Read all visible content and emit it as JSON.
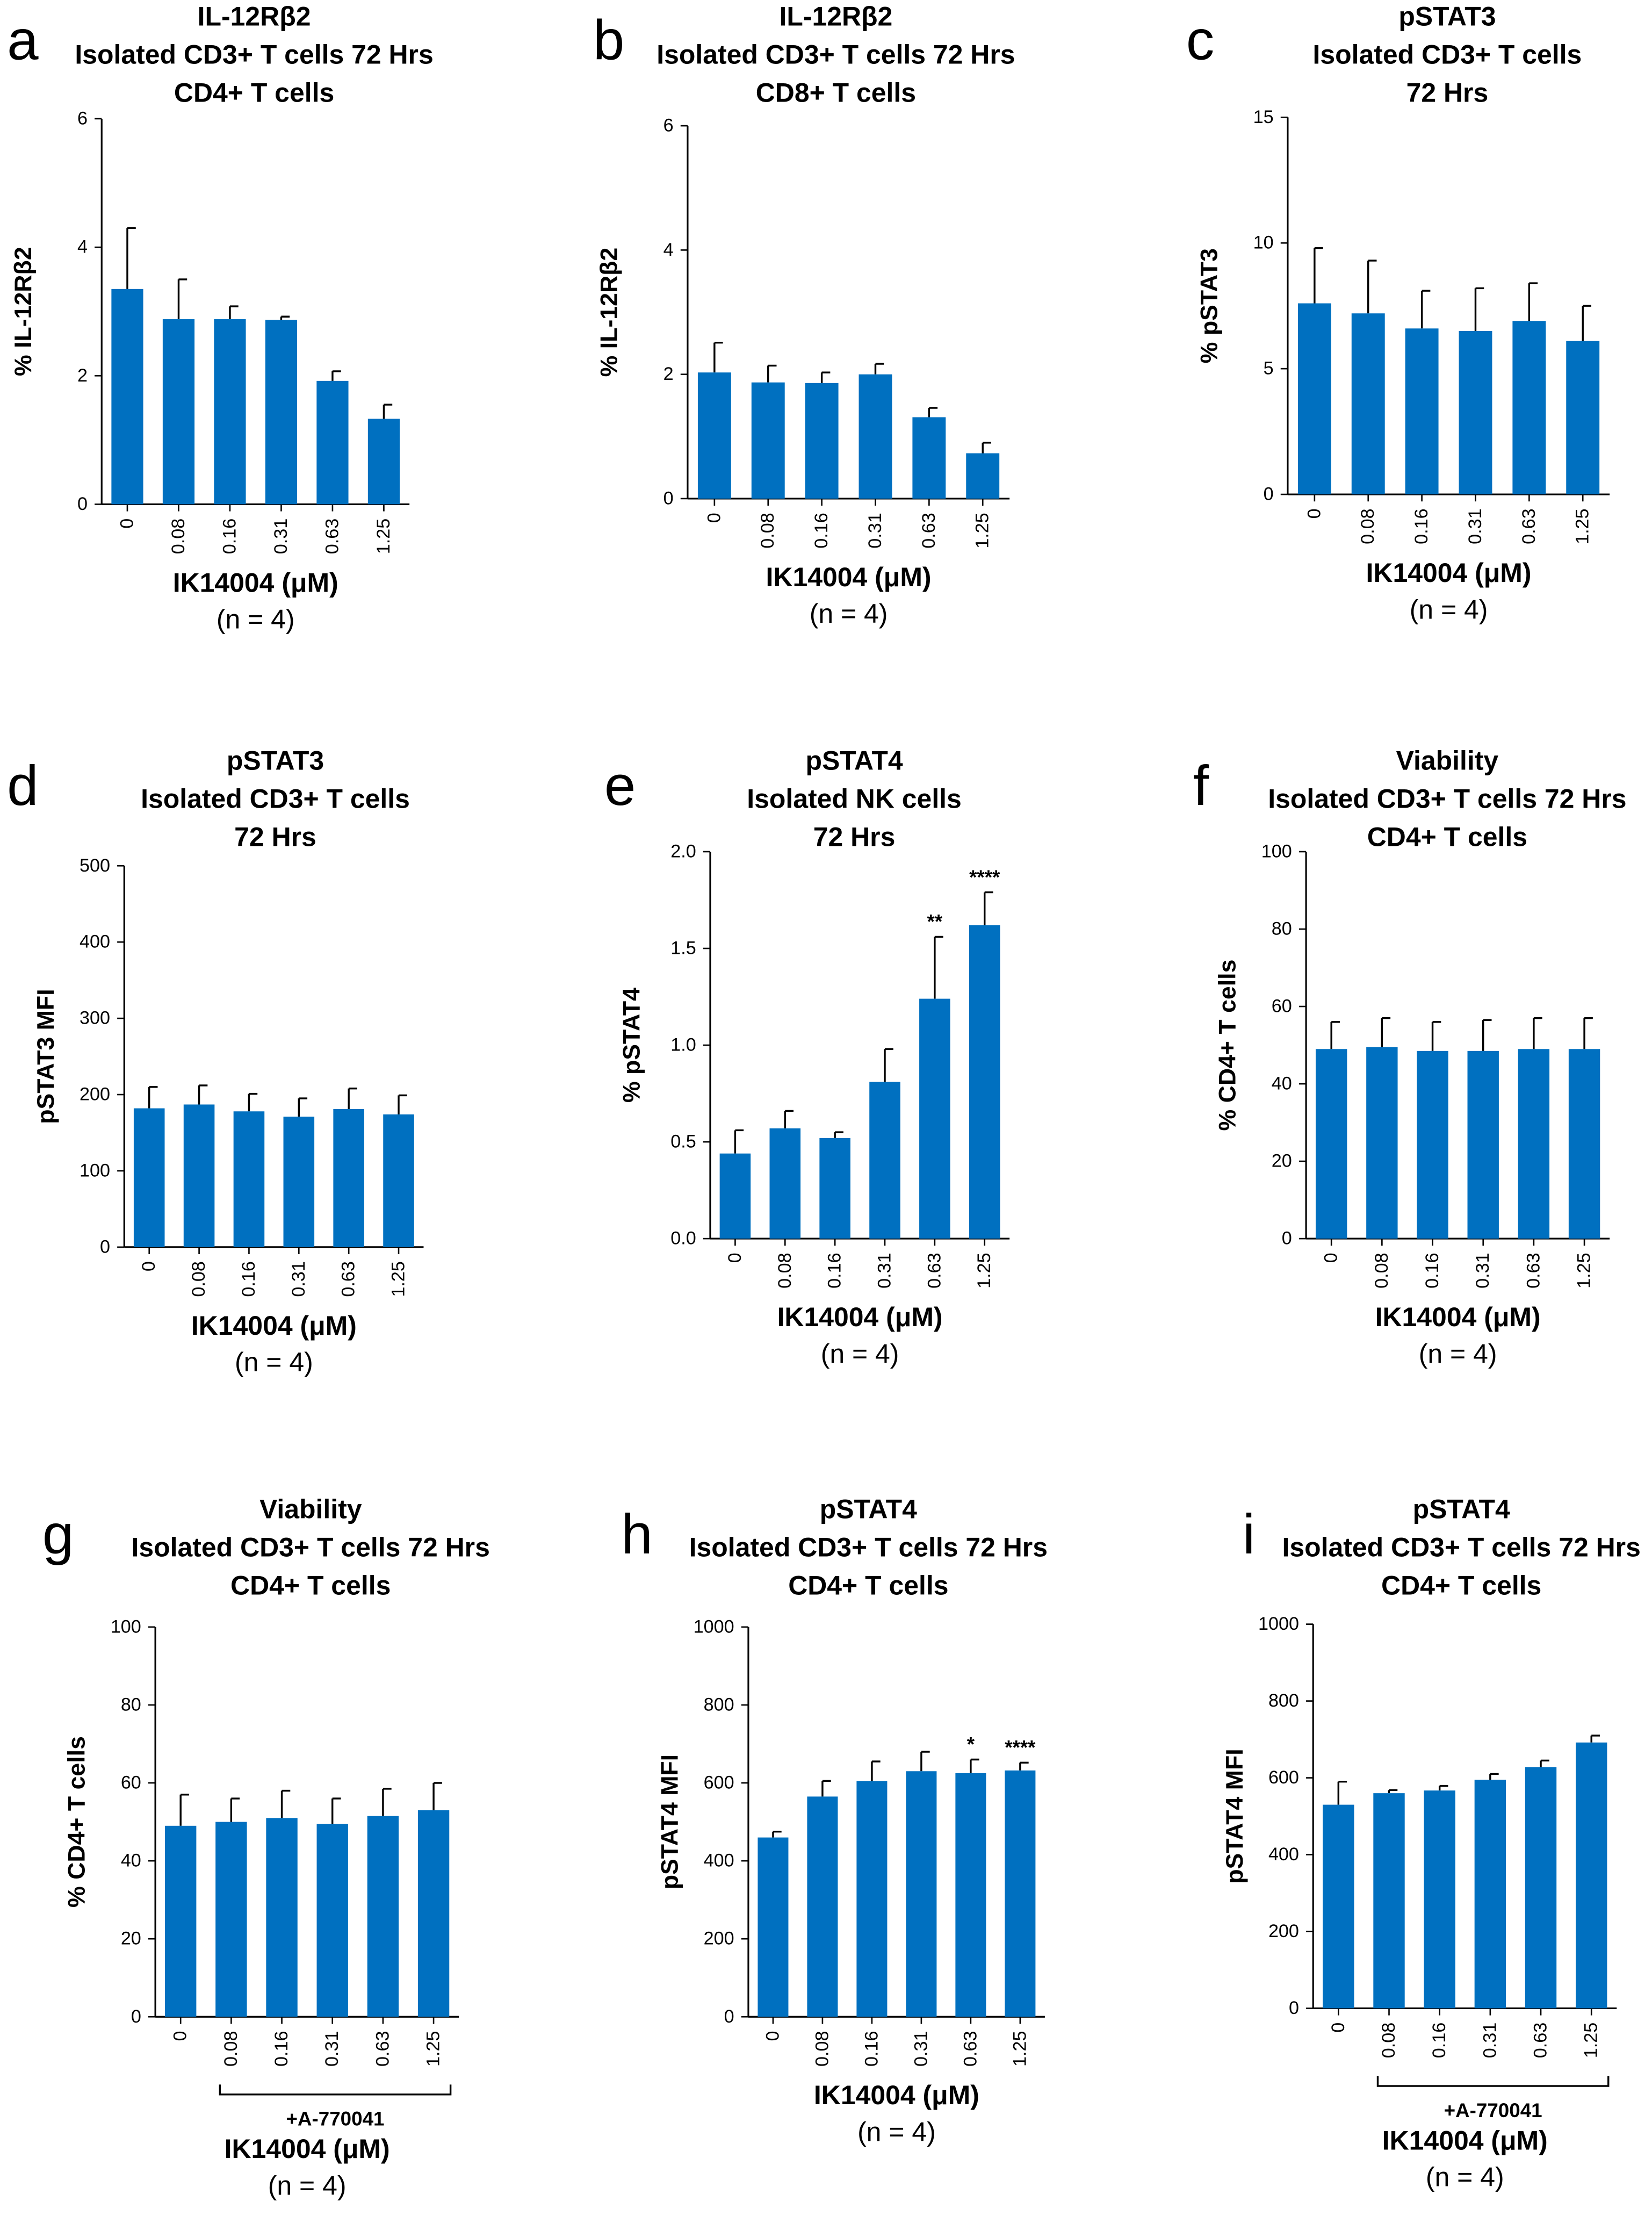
{
  "colors": {
    "bar": "#0070C0",
    "axis": "#000000"
  },
  "chart_data": [
    {
      "panel": "a",
      "type": "bar",
      "title": [
        "IL-12Rβ2",
        "Isolated CD3+ T cells 72 Hrs",
        "CD4+ T cells"
      ],
      "ylabel": "% IL-12Rβ2",
      "xlabel": "IK14004 (μM)",
      "note": "(n = 4)",
      "categories": [
        "0",
        "0.08",
        "0.16",
        "0.31",
        "0.63",
        "1.25"
      ],
      "values": [
        3.35,
        2.88,
        2.88,
        2.87,
        1.92,
        1.33
      ],
      "errors": [
        0.95,
        0.62,
        0.2,
        0.05,
        0.15,
        0.22
      ],
      "ylim": [
        0,
        6
      ],
      "yticks": [
        "0",
        "2",
        "4",
        "6"
      ],
      "annotations": [
        "",
        "",
        "",
        "",
        "",
        ""
      ]
    },
    {
      "panel": "b",
      "type": "bar",
      "title": [
        "IL-12Rβ2",
        "Isolated CD3+ T cells 72 Hrs",
        "CD8+ T cells"
      ],
      "ylabel": "% IL-12Rβ2",
      "xlabel": "IK14004 (μM)",
      "note": "(n = 4)",
      "categories": [
        "0",
        "0.08",
        "0.16",
        "0.31",
        "0.63",
        "1.25"
      ],
      "values": [
        2.03,
        1.87,
        1.86,
        2.0,
        1.31,
        0.73
      ],
      "errors": [
        0.48,
        0.27,
        0.17,
        0.17,
        0.15,
        0.17
      ],
      "ylim": [
        0,
        6
      ],
      "yticks": [
        "0",
        "2",
        "4",
        "6"
      ],
      "annotations": [
        "",
        "",
        "",
        "",
        "",
        ""
      ]
    },
    {
      "panel": "c",
      "type": "bar",
      "title": [
        "pSTAT3",
        "Isolated CD3+ T cells",
        "72 Hrs"
      ],
      "ylabel": "% pSTAT3",
      "xlabel": "IK14004 (μM)",
      "note": "(n = 4)",
      "categories": [
        "0",
        "0.08",
        "0.16",
        "0.31",
        "0.63",
        "1.25"
      ],
      "values": [
        7.6,
        7.2,
        6.6,
        6.5,
        6.9,
        6.1
      ],
      "errors": [
        2.2,
        2.1,
        1.5,
        1.7,
        1.5,
        1.4
      ],
      "ylim": [
        0,
        15
      ],
      "yticks": [
        "0",
        "5",
        "10",
        "15"
      ],
      "annotations": [
        "",
        "",
        "",
        "",
        "",
        ""
      ]
    },
    {
      "panel": "d",
      "type": "bar",
      "title": [
        "pSTAT3",
        "Isolated CD3+ T cells",
        "72 Hrs"
      ],
      "ylabel": "pSTAT3 MFI",
      "xlabel": "IK14004 (μM)",
      "note": "(n = 4)",
      "categories": [
        "0",
        "0.08",
        "0.16",
        "0.31",
        "0.63",
        "1.25"
      ],
      "values": [
        182,
        187,
        178,
        171,
        181,
        174
      ],
      "errors": [
        28,
        25,
        23,
        24,
        27,
        25
      ],
      "ylim": [
        0,
        500
      ],
      "yticks": [
        "0",
        "100",
        "200",
        "300",
        "400",
        "500"
      ],
      "annotations": [
        "",
        "",
        "",
        "",
        "",
        ""
      ]
    },
    {
      "panel": "e",
      "type": "bar",
      "title": [
        "pSTAT4",
        "Isolated NK cells",
        "72 Hrs"
      ],
      "ylabel": "% pSTAT4",
      "xlabel": "IK14004 (μM)",
      "note": "(n = 4)",
      "categories": [
        "0",
        "0.08",
        "0.16",
        "0.31",
        "0.63",
        "1.25"
      ],
      "values": [
        0.44,
        0.57,
        0.52,
        0.81,
        1.24,
        1.62
      ],
      "errors": [
        0.12,
        0.09,
        0.03,
        0.17,
        0.32,
        0.17
      ],
      "ylim": [
        0,
        2
      ],
      "yticks": [
        "0.0",
        "0.5",
        "1.0",
        "1.5",
        "2.0"
      ],
      "annotations": [
        "",
        "",
        "",
        "",
        "**",
        "****"
      ]
    },
    {
      "panel": "f",
      "type": "bar",
      "title": [
        "Viability",
        "Isolated CD3+ T cells 72 Hrs",
        "CD4+ T cells"
      ],
      "ylabel": "% CD4+ T cells",
      "xlabel": "IK14004 (μM)",
      "note": "(n = 4)",
      "categories": [
        "0",
        "0.08",
        "0.16",
        "0.31",
        "0.63",
        "1.25"
      ],
      "values": [
        49,
        49.5,
        48.5,
        48.5,
        49,
        49
      ],
      "errors": [
        7,
        7.5,
        7.5,
        8,
        8,
        8
      ],
      "ylim": [
        0,
        100
      ],
      "yticks": [
        "0",
        "20",
        "40",
        "60",
        "80",
        "100"
      ],
      "annotations": [
        "",
        "",
        "",
        "",
        "",
        ""
      ]
    },
    {
      "panel": "g",
      "type": "bar",
      "title": [
        "Viability",
        "Isolated CD3+ T cells 72 Hrs",
        "CD4+ T cells"
      ],
      "ylabel": "% CD4+ T cells",
      "xlabel": "IK14004 (μM)",
      "note": "(n = 4)",
      "bracket_label": "+A-770041",
      "categories": [
        "0",
        "0.08",
        "0.16",
        "0.31",
        "0.63",
        "1.25"
      ],
      "values": [
        49,
        50,
        51,
        49.5,
        51.5,
        53
      ],
      "errors": [
        8,
        6,
        7,
        6.5,
        7,
        7
      ],
      "ylim": [
        0,
        100
      ],
      "yticks": [
        "0",
        "20",
        "40",
        "60",
        "80",
        "100"
      ],
      "annotations": [
        "",
        "",
        "",
        "",
        "",
        ""
      ]
    },
    {
      "panel": "h",
      "type": "bar",
      "title": [
        "pSTAT4",
        "Isolated CD3+ T cells 72 Hrs",
        "CD4+ T cells"
      ],
      "ylabel": "pSTAT4 MFI",
      "xlabel": "IK14004 (μM)",
      "note": "(n = 4)",
      "categories": [
        "0",
        "0.08",
        "0.16",
        "0.31",
        "0.63",
        "1.25"
      ],
      "values": [
        460,
        565,
        605,
        630,
        625,
        632
      ],
      "errors": [
        15,
        40,
        50,
        50,
        35,
        20
      ],
      "ylim": [
        0,
        1000
      ],
      "yticks": [
        "0",
        "200",
        "400",
        "600",
        "800",
        "1000"
      ],
      "annotations": [
        "",
        "",
        "",
        "",
        "*",
        "****"
      ]
    },
    {
      "panel": "i",
      "type": "bar",
      "title": [
        "pSTAT4",
        "Isolated CD3+ T cells 72 Hrs",
        "CD4+ T cells"
      ],
      "ylabel": "pSTAT4 MFI",
      "xlabel": "IK14004 (μM)",
      "note": "(n = 4)",
      "bracket_label": "+A-770041",
      "categories": [
        "0",
        "0.08",
        "0.16",
        "0.31",
        "0.63",
        "1.25"
      ],
      "values": [
        530,
        560,
        567,
        595,
        628,
        692
      ],
      "errors": [
        60,
        8,
        12,
        15,
        17,
        18
      ],
      "ylim": [
        0,
        1000
      ],
      "yticks": [
        "0",
        "200",
        "400",
        "600",
        "800",
        "1000"
      ],
      "annotations": [
        "",
        "",
        "",
        "",
        "",
        ""
      ]
    }
  ]
}
